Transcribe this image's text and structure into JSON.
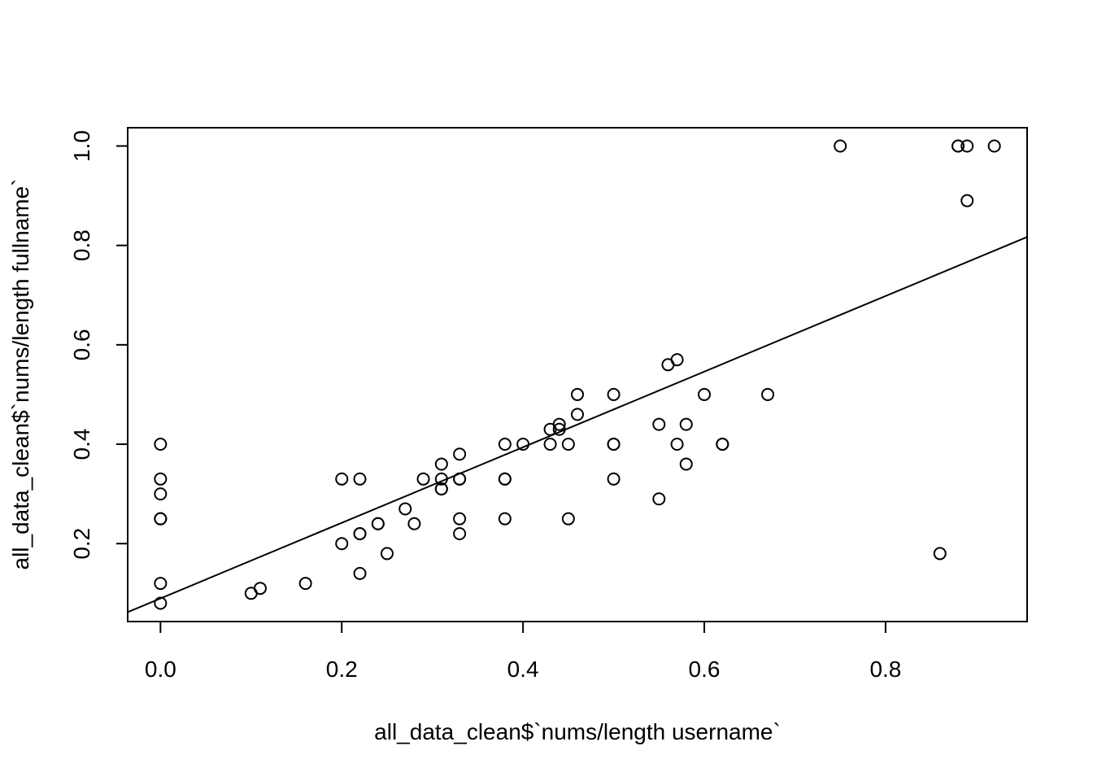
{
  "chart_data": {
    "type": "scatter",
    "title": "",
    "xlabel": "all_data_clean$`nums/length username`",
    "ylabel": "all_data_clean$`nums/length fullname`",
    "xlim": [
      -0.0362,
      0.9562
    ],
    "ylim": [
      0.0432,
      1.0368
    ],
    "grid": false,
    "x_ticks": [
      0.0,
      0.2,
      0.4,
      0.6,
      0.8
    ],
    "x_tick_labels": [
      "0.0",
      "0.2",
      "0.4",
      "0.6",
      "0.8"
    ],
    "y_ticks": [
      0.2,
      0.4,
      0.6,
      0.8,
      1.0
    ],
    "y_tick_labels": [
      "0.2",
      "0.4",
      "0.6",
      "0.8",
      "1.0"
    ],
    "points": [
      [
        0,
        0.4
      ],
      [
        0,
        0.33
      ],
      [
        0,
        0.3
      ],
      [
        0,
        0.25
      ],
      [
        0,
        0.25
      ],
      [
        0,
        0.12
      ],
      [
        0,
        0.08
      ],
      [
        0.1,
        0.1
      ],
      [
        0.11,
        0.11
      ],
      [
        0.16,
        0.12
      ],
      [
        0.2,
        0.33
      ],
      [
        0.2,
        0.2
      ],
      [
        0.22,
        0.33
      ],
      [
        0.22,
        0.22
      ],
      [
        0.22,
        0.22
      ],
      [
        0.22,
        0.14
      ],
      [
        0.24,
        0.24
      ],
      [
        0.24,
        0.24
      ],
      [
        0.25,
        0.18
      ],
      [
        0.27,
        0.27
      ],
      [
        0.28,
        0.24
      ],
      [
        0.29,
        0.33
      ],
      [
        0.31,
        0.36
      ],
      [
        0.31,
        0.33
      ],
      [
        0.31,
        0.31
      ],
      [
        0.31,
        0.31
      ],
      [
        0.33,
        0.38
      ],
      [
        0.33,
        0.33
      ],
      [
        0.33,
        0.33
      ],
      [
        0.33,
        0.25
      ],
      [
        0.33,
        0.22
      ],
      [
        0.38,
        0.4
      ],
      [
        0.38,
        0.33
      ],
      [
        0.38,
        0.33
      ],
      [
        0.38,
        0.25
      ],
      [
        0.4,
        0.4
      ],
      [
        0.43,
        0.43
      ],
      [
        0.43,
        0.4
      ],
      [
        0.44,
        0.44
      ],
      [
        0.44,
        0.43
      ],
      [
        0.45,
        0.4
      ],
      [
        0.45,
        0.25
      ],
      [
        0.46,
        0.5
      ],
      [
        0.46,
        0.46
      ],
      [
        0.5,
        0.5
      ],
      [
        0.5,
        0.4
      ],
      [
        0.5,
        0.4
      ],
      [
        0.5,
        0.33
      ],
      [
        0.55,
        0.44
      ],
      [
        0.55,
        0.29
      ],
      [
        0.56,
        0.56
      ],
      [
        0.57,
        0.57
      ],
      [
        0.57,
        0.4
      ],
      [
        0.58,
        0.44
      ],
      [
        0.58,
        0.36
      ],
      [
        0.6,
        0.5
      ],
      [
        0.62,
        0.4
      ],
      [
        0.62,
        0.4
      ],
      [
        0.67,
        0.5
      ],
      [
        0.75,
        1.0
      ],
      [
        0.86,
        0.18
      ],
      [
        0.88,
        1.0
      ],
      [
        0.88,
        1.0
      ],
      [
        0.89,
        1.0
      ],
      [
        0.89,
        0.89
      ],
      [
        0.92,
        1.0
      ]
    ],
    "regression_line": {
      "intercept": 0.0897,
      "slope": 0.7606
    }
  }
}
